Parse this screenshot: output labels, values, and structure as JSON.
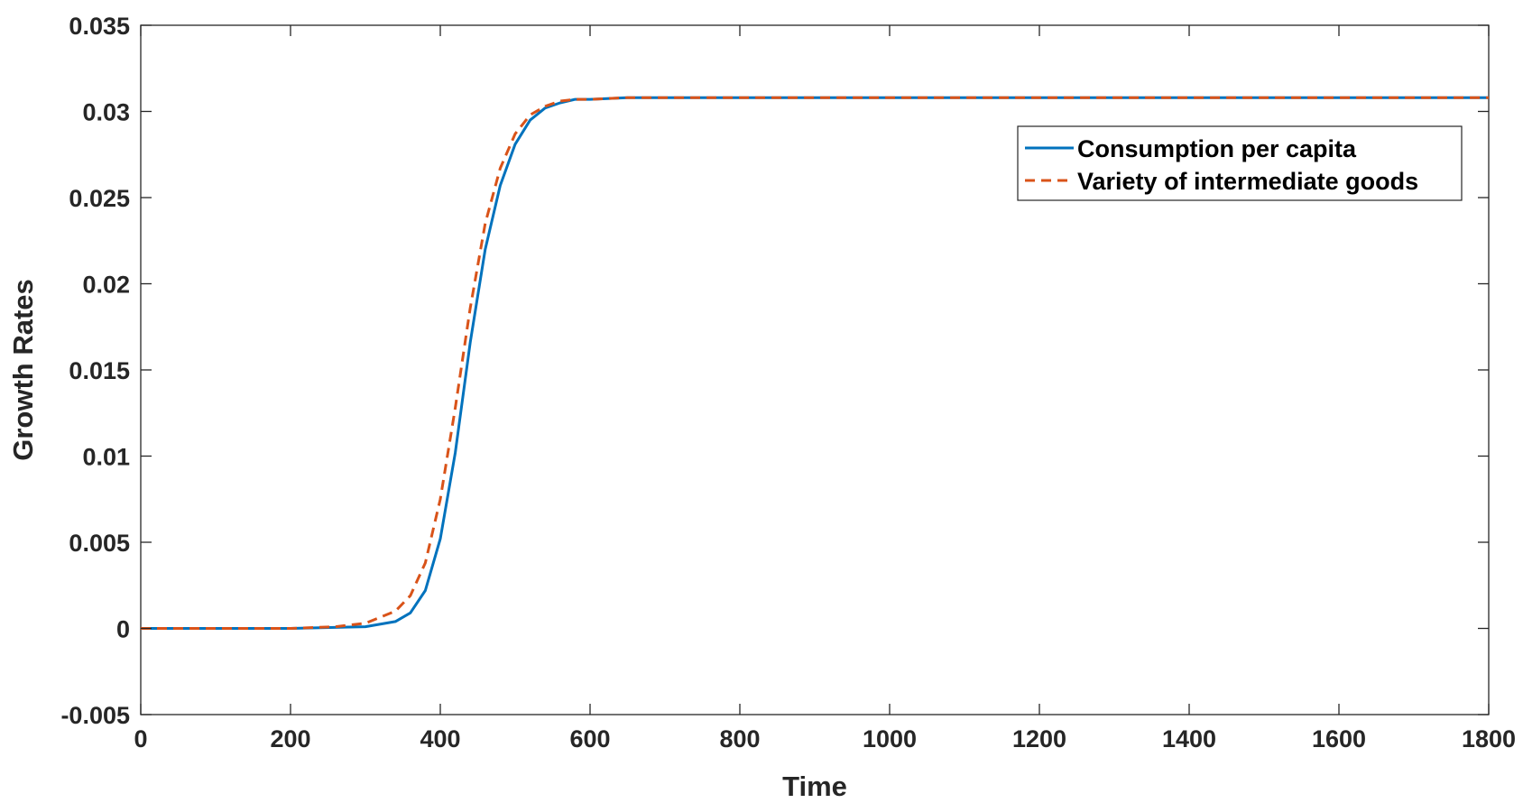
{
  "chart_data": {
    "type": "line",
    "title": "",
    "xlabel": "Time",
    "ylabel": "Growth Rates",
    "xlim": [
      0,
      1800
    ],
    "ylim": [
      -0.005,
      0.035
    ],
    "xticks": [
      0,
      200,
      400,
      600,
      800,
      1000,
      1200,
      1400,
      1600,
      1800
    ],
    "xtick_labels": [
      "0",
      "200",
      "400",
      "600",
      "800",
      "1000",
      "1200",
      "1400",
      "1600",
      "1800"
    ],
    "yticks": [
      -0.005,
      0,
      0.005,
      0.01,
      0.015,
      0.02,
      0.025,
      0.03,
      0.035
    ],
    "ytick_labels": [
      "-0.005",
      "0",
      "0.005",
      "0.01",
      "0.015",
      "0.02",
      "0.025",
      "0.03",
      "0.035"
    ],
    "grid": false,
    "legend_position": "top-right",
    "series": [
      {
        "name": "Consumption per capita",
        "color": "#0072BD",
        "style": "solid",
        "x": [
          0,
          200,
          300,
          340,
          360,
          380,
          400,
          420,
          440,
          460,
          480,
          500,
          520,
          540,
          560,
          580,
          600,
          650,
          700,
          800,
          1000,
          1200,
          1400,
          1600,
          1800
        ],
        "y": [
          0,
          0,
          0.0001,
          0.0004,
          0.0009,
          0.0022,
          0.0052,
          0.0102,
          0.0166,
          0.022,
          0.0257,
          0.0281,
          0.0295,
          0.0302,
          0.0305,
          0.0307,
          0.0307,
          0.0308,
          0.0308,
          0.0308,
          0.0308,
          0.0308,
          0.0308,
          0.0308,
          0.0308
        ]
      },
      {
        "name": "Variety of intermediate goods",
        "color": "#D95319",
        "style": "dashed",
        "x": [
          0,
          200,
          260,
          300,
          340,
          360,
          380,
          400,
          420,
          440,
          460,
          480,
          500,
          520,
          540,
          560,
          580,
          600,
          650,
          700,
          800,
          1000,
          1200,
          1400,
          1600,
          1800
        ],
        "y": [
          0,
          0,
          0.0001,
          0.0003,
          0.001,
          0.0019,
          0.0038,
          0.0075,
          0.0128,
          0.0186,
          0.0235,
          0.0267,
          0.0287,
          0.0298,
          0.0303,
          0.0306,
          0.0307,
          0.0307,
          0.0308,
          0.0308,
          0.0308,
          0.0308,
          0.0308,
          0.0308,
          0.0308,
          0.0308
        ]
      }
    ]
  }
}
